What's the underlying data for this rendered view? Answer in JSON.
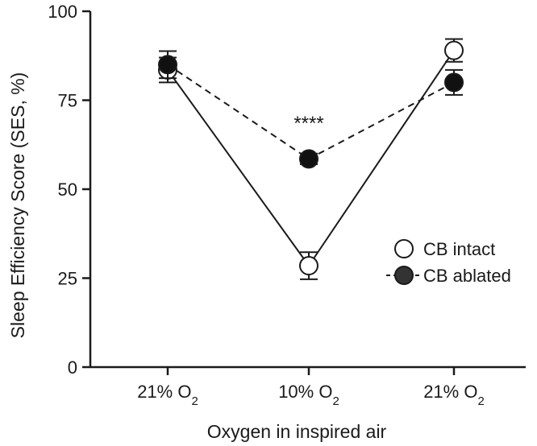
{
  "chart_data": {
    "type": "line",
    "title": "",
    "xlabel": "Oxygen in inspired air",
    "ylabel": "Sleep Efficiency Score (SES, %)",
    "ylim": [
      0,
      100
    ],
    "yticks": [
      0,
      25,
      50,
      75,
      100
    ],
    "categories": [
      {
        "base": "21% O",
        "sub": "2"
      },
      {
        "base": "10% O",
        "sub": "2"
      },
      {
        "base": "21% O",
        "sub": "2"
      }
    ],
    "series": [
      {
        "name": "CB intact",
        "marker": "open-circle",
        "line": "solid",
        "values": [
          83.5,
          28.5,
          89
        ],
        "errors": [
          3.5,
          3.8,
          3.2
        ]
      },
      {
        "name": "CB ablated",
        "marker": "filled-circle",
        "line": "dashed",
        "values": [
          85,
          58.5,
          80
        ],
        "errors": [
          3.8,
          1.5,
          3.5
        ]
      }
    ],
    "annotations": [
      {
        "text": "****",
        "category_index": 1,
        "y": 69
      }
    ],
    "legend_position": "right",
    "grid": false,
    "colors": {
      "axis": "#1a1a1a",
      "marker_fill_ablated": "#111111",
      "marker_fill_intact": "#ffffff"
    }
  }
}
